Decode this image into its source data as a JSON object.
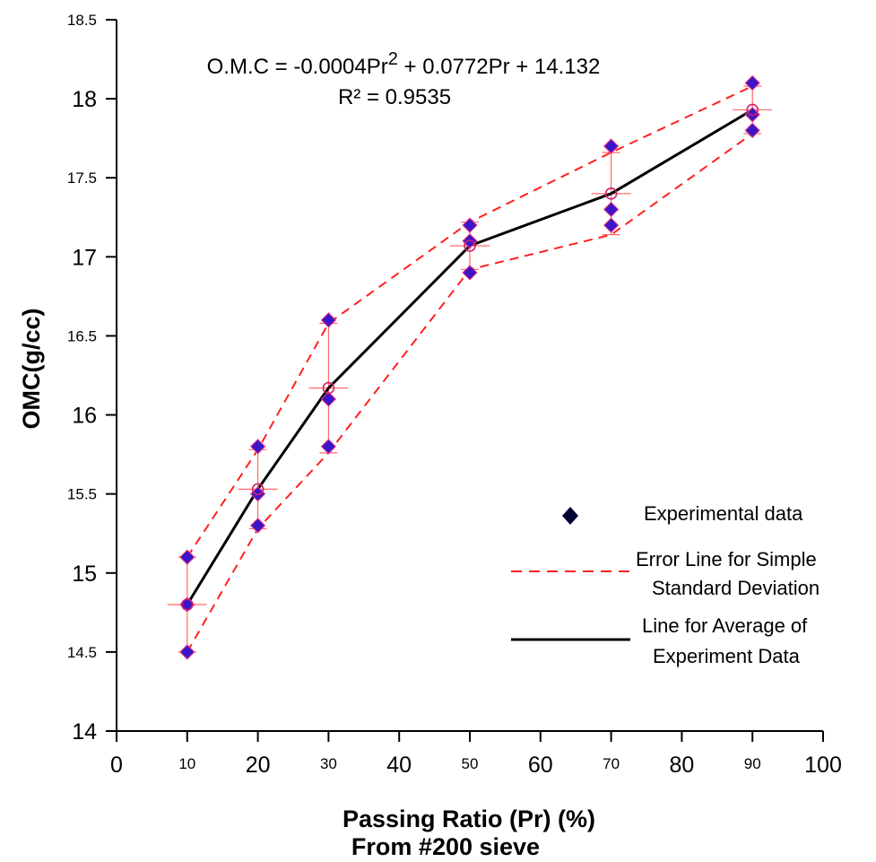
{
  "chart_data": {
    "type": "scatter",
    "equation": {
      "line1_prefix": "O.M.C = -0.0004Pr",
      "line1_sup": "2",
      "line1_suffix": " + 0.0772Pr + 14.132",
      "line2": "R² = 0.9535"
    },
    "xlabel_line1": "Passing Ratio (Pr) (%)",
    "xlabel_line2": "From #200 sieve",
    "ylabel": "OMC(g/cc)",
    "xlim": [
      0,
      100
    ],
    "ylim": [
      14,
      18.5
    ],
    "x_ticks": [
      {
        "value": 0,
        "label": "0",
        "size": "large"
      },
      {
        "value": 10,
        "label": "10",
        "size": "small"
      },
      {
        "value": 20,
        "label": "20",
        "size": "large"
      },
      {
        "value": 30,
        "label": "30",
        "size": "small"
      },
      {
        "value": 40,
        "label": "40",
        "size": "large"
      },
      {
        "value": 50,
        "label": "50",
        "size": "small"
      },
      {
        "value": 60,
        "label": "60",
        "size": "large"
      },
      {
        "value": 70,
        "label": "70",
        "size": "small"
      },
      {
        "value": 80,
        "label": "80",
        "size": "large"
      },
      {
        "value": 90,
        "label": "90",
        "size": "small"
      },
      {
        "value": 100,
        "label": "100",
        "size": "large"
      }
    ],
    "y_ticks": [
      {
        "value": 14,
        "label": "14",
        "size": "large"
      },
      {
        "value": 14.5,
        "label": "14.5",
        "size": "small"
      },
      {
        "value": 15,
        "label": "15",
        "size": "large"
      },
      {
        "value": 15.5,
        "label": "15.5",
        "size": "small"
      },
      {
        "value": 16,
        "label": "16",
        "size": "large"
      },
      {
        "value": 16.5,
        "label": "16.5",
        "size": "small"
      },
      {
        "value": 17,
        "label": "17",
        "size": "large"
      },
      {
        "value": 17.5,
        "label": "17.5",
        "size": "small"
      },
      {
        "value": 18,
        "label": "18",
        "size": "large"
      },
      {
        "value": 18.5,
        "label": "18.5",
        "size": "small"
      }
    ],
    "experimental": [
      {
        "x": 10,
        "y": 15.1
      },
      {
        "x": 10,
        "y": 14.8
      },
      {
        "x": 10,
        "y": 14.5
      },
      {
        "x": 20,
        "y": 15.8
      },
      {
        "x": 20,
        "y": 15.5
      },
      {
        "x": 20,
        "y": 15.3
      },
      {
        "x": 30,
        "y": 16.6
      },
      {
        "x": 30,
        "y": 16.1
      },
      {
        "x": 30,
        "y": 15.8
      },
      {
        "x": 50,
        "y": 17.2
      },
      {
        "x": 50,
        "y": 17.1
      },
      {
        "x": 50,
        "y": 16.9
      },
      {
        "x": 70,
        "y": 17.7
      },
      {
        "x": 70,
        "y": 17.3
      },
      {
        "x": 70,
        "y": 17.2
      },
      {
        "x": 90,
        "y": 18.1
      },
      {
        "x": 90,
        "y": 17.9
      },
      {
        "x": 90,
        "y": 17.8
      }
    ],
    "average": [
      {
        "x": 10,
        "y": 14.8,
        "sd": 0.3
      },
      {
        "x": 20,
        "y": 15.53,
        "sd": 0.25
      },
      {
        "x": 30,
        "y": 16.17,
        "sd": 0.41
      },
      {
        "x": 50,
        "y": 17.07,
        "sd": 0.15
      },
      {
        "x": 70,
        "y": 17.4,
        "sd": 0.26
      },
      {
        "x": 90,
        "y": 17.93,
        "sd": 0.15
      }
    ],
    "legend": {
      "experimental": "Experimental data",
      "error_line1": "Error Line for Simple",
      "error_line2": "Standard Deviation",
      "average_line1": "Line for Average of",
      "average_line2": "Experiment Data"
    },
    "colors": {
      "marker_fill": "#3a16c8",
      "marker_stroke": "#ff3d7f",
      "legend_marker": "#000033",
      "error_line": "#ff2020",
      "error_bar": "#ff6b6b",
      "average_line": "#000000",
      "avg_marker": "#d0206f"
    }
  }
}
